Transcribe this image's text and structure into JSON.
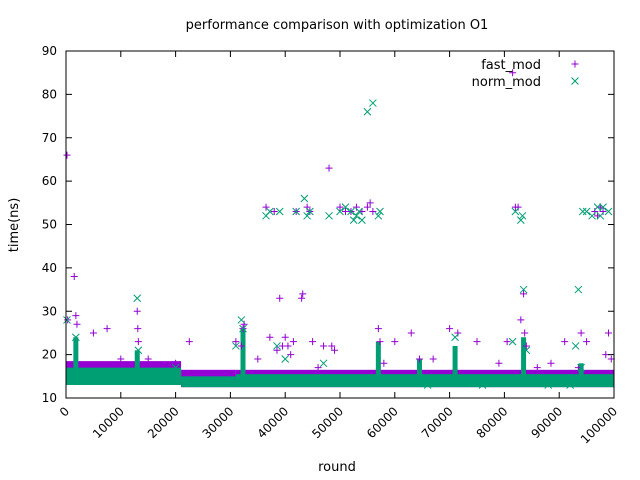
{
  "chart_data": {
    "type": "scatter",
    "title": "performance comparison with optimization O1",
    "xlabel": "round",
    "ylabel": "time(ns)",
    "xlim": [
      0,
      100000
    ],
    "ylim": [
      10,
      90
    ],
    "xticks": [
      0,
      10000,
      20000,
      30000,
      40000,
      50000,
      60000,
      70000,
      80000,
      90000,
      100000
    ],
    "yticks": [
      10,
      20,
      30,
      40,
      50,
      60,
      70,
      80,
      90
    ],
    "grid": false,
    "legend_position": "top-right",
    "series": [
      {
        "name": "fast_mod",
        "marker": "plus",
        "color": "#9400d3",
        "x": [
          0,
          300,
          1500,
          1800,
          2000,
          5000,
          7500,
          10000,
          13000,
          13100,
          13200,
          15000,
          20000,
          22500,
          31000,
          32000,
          32300,
          32500,
          35000,
          36500,
          37200,
          38000,
          38500,
          39000,
          39500,
          40000,
          40500,
          41000,
          41500,
          42000,
          43000,
          43200,
          44000,
          44500,
          45000,
          46000,
          47000,
          48000,
          48500,
          49000,
          50000,
          51000,
          52000,
          53000,
          54000,
          55000,
          55500,
          56000,
          57000,
          57300,
          58000,
          60000,
          63000,
          64500,
          67000,
          70000,
          71500,
          75000,
          79000,
          80500,
          81500,
          82000,
          82500,
          83000,
          83500,
          83700,
          84000,
          86000,
          88500,
          91000,
          93500,
          94000,
          95000,
          96500,
          97000,
          97500,
          98000,
          98500,
          99000,
          99500
        ],
        "y": [
          66,
          28,
          38,
          29,
          27,
          25,
          26,
          19,
          30,
          26,
          23,
          19,
          18,
          23,
          23,
          22,
          26,
          27,
          19,
          54,
          24,
          53,
          21,
          33,
          22,
          24,
          22,
          20,
          23,
          53,
          33,
          34,
          54,
          53,
          23,
          17,
          22,
          63,
          22,
          21,
          54,
          53,
          53,
          54,
          53,
          54,
          55,
          53,
          26,
          23,
          18,
          23,
          25,
          19,
          19,
          26,
          25,
          23,
          18,
          23,
          85,
          54,
          54,
          28,
          34,
          25,
          22,
          17,
          18,
          23,
          17,
          25,
          23,
          53,
          52,
          54,
          53,
          20,
          25,
          19
        ]
      },
      {
        "name": "norm_mod",
        "marker": "cross",
        "color": "#009e73",
        "x": [
          0,
          1800,
          13000,
          13200,
          20000,
          31000,
          32000,
          32300,
          36500,
          37200,
          38500,
          39000,
          40000,
          42000,
          43500,
          44000,
          44500,
          47000,
          48000,
          50000,
          51000,
          52000,
          52500,
          53000,
          53500,
          54000,
          55000,
          56000,
          57000,
          57300,
          61000,
          66000,
          71000,
          76000,
          81500,
          82000,
          83000,
          83300,
          83500,
          84000,
          88000,
          92000,
          93000,
          93500,
          94000,
          94300,
          95000,
          96000,
          97000,
          97500,
          98000,
          99000
        ],
        "y": [
          28,
          24,
          33,
          21,
          17,
          22,
          28,
          26,
          52,
          53,
          22,
          53,
          19,
          53,
          56,
          52,
          53,
          18,
          52,
          53,
          54,
          53,
          51,
          52,
          53,
          51,
          76,
          78,
          52,
          53,
          14,
          13,
          24,
          13,
          23,
          53,
          51,
          52,
          35,
          21,
          13,
          13,
          22,
          35,
          17,
          53,
          53,
          52,
          54,
          52,
          54,
          53
        ]
      }
    ]
  }
}
